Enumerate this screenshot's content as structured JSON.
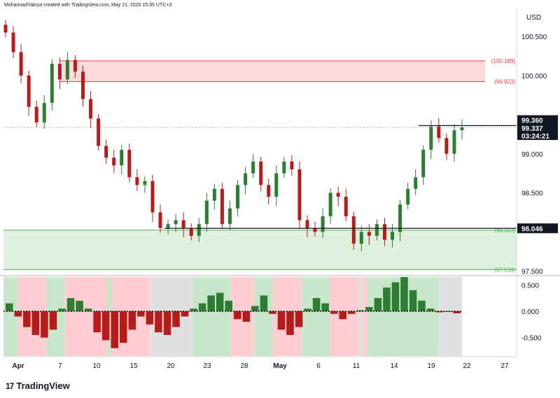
{
  "header": {
    "created_by": "MohannadYakout created with TradingView.com, May 21, 2026 15:35 UTC+3"
  },
  "branding": {
    "name": "TradingView",
    "icon": "tradingview-logo-icon"
  },
  "price_axis": {
    "currency": "USD",
    "ticks": [
      "100.500",
      "100.000",
      "99.000",
      "98.500",
      "97.500"
    ],
    "badges": {
      "high": "99.360",
      "current": "99.337",
      "countdown": "03:24:21",
      "support": "98.046"
    }
  },
  "zones": {
    "resistance": {
      "top_label": "(100.188)",
      "bottom_label": "(99.923)",
      "top": 100.188,
      "bottom": 99.923,
      "color": "#f23645"
    },
    "support": {
      "top_label": "(98.023)",
      "bottom_label": "(97.518)",
      "top": 98.023,
      "bottom": 97.518,
      "color": "#4caf50"
    }
  },
  "levels": {
    "high_line": 99.36,
    "current_price": 99.337,
    "support_line": 98.046
  },
  "oscillator_axis": {
    "ticks": [
      "0.500",
      "0.000",
      "-0.500"
    ]
  },
  "time_axis": {
    "labels": [
      "Apr",
      "7",
      "10",
      "15",
      "20",
      "23",
      "28",
      "May",
      "6",
      "11",
      "14",
      "19",
      "22",
      "27"
    ]
  },
  "chart_data": {
    "type": "candlestick",
    "price_series_close": [
      100.55,
      100.3,
      100.0,
      99.6,
      99.4,
      99.65,
      100.15,
      99.95,
      100.2,
      100.05,
      99.7,
      99.45,
      99.1,
      98.95,
      98.85,
      99.05,
      98.7,
      98.6,
      98.65,
      98.25,
      98.05,
      98.1,
      98.15,
      98.05,
      97.95,
      98.1,
      98.4,
      98.55,
      98.1,
      98.3,
      98.6,
      98.75,
      98.9,
      98.6,
      98.45,
      98.75,
      98.9,
      98.8,
      98.15,
      98.05,
      98.0,
      98.2,
      98.5,
      98.45,
      98.2,
      97.85,
      98.0,
      97.95,
      98.1,
      97.9,
      98.0,
      98.35,
      98.55,
      98.7,
      99.05,
      99.35,
      99.2,
      99.0,
      99.3,
      99.337
    ],
    "oscillator_histogram": [
      0.15,
      -0.1,
      -0.3,
      -0.45,
      -0.5,
      -0.35,
      0.05,
      0.25,
      0.2,
      0.05,
      -0.4,
      -0.55,
      -0.7,
      -0.6,
      -0.35,
      -0.1,
      -0.25,
      -0.4,
      -0.45,
      -0.3,
      -0.1,
      0.05,
      0.15,
      0.3,
      0.35,
      0.2,
      -0.15,
      -0.2,
      0.1,
      0.3,
      -0.05,
      -0.35,
      -0.45,
      -0.3,
      0.05,
      0.25,
      0.15,
      -0.05,
      -0.15,
      -0.05,
      0.02,
      0.08,
      0.25,
      0.45,
      0.55,
      0.65,
      0.4,
      0.2,
      0.05,
      -0.02,
      0.0,
      -0.04
    ],
    "oscillator_ylim": [
      -0.85,
      0.65
    ],
    "price_ylim": [
      97.45,
      100.85
    ],
    "background_regimes": [
      {
        "state": "bull",
        "from": 0,
        "to": 3
      },
      {
        "state": "bear",
        "from": 3,
        "to": 9
      },
      {
        "state": "bull",
        "from": 9,
        "to": 13
      },
      {
        "state": "bear",
        "from": 13,
        "to": 22
      },
      {
        "state": "bull",
        "from": 22,
        "to": 23
      },
      {
        "state": "bear",
        "from": 23,
        "to": 31
      },
      {
        "state": "neutral",
        "from": 31,
        "to": 40
      },
      {
        "state": "bull",
        "from": 40,
        "to": 48
      },
      {
        "state": "bear",
        "from": 48,
        "to": 53
      },
      {
        "state": "bull",
        "from": 53,
        "to": 57
      },
      {
        "state": "bear",
        "from": 57,
        "to": 63
      },
      {
        "state": "bull",
        "from": 63,
        "to": 69
      },
      {
        "state": "bear",
        "from": 69,
        "to": 75
      },
      {
        "state": "neutral",
        "from": 75,
        "to": 76
      },
      {
        "state": "bear",
        "from": 76,
        "to": 77
      },
      {
        "state": "bull",
        "from": 77,
        "to": 92
      },
      {
        "state": "neutral",
        "from": 92,
        "to": 97
      }
    ],
    "colors": {
      "up": "#2e7d32",
      "down": "#b71c1c",
      "bull_bg": "#c8e6c9",
      "bear_bg": "#ffcdd2",
      "neutral_bg": "#e0e0e0"
    }
  }
}
